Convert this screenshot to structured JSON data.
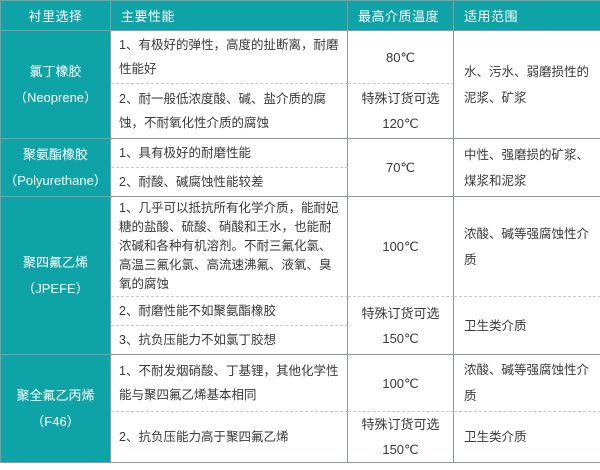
{
  "colors": {
    "accent_teal": "#0ea4a7",
    "border_gray": "#8f9797",
    "dash_gray": "#c9c9c9",
    "text_dark": "#3a3a3a",
    "header_text": "#ffffff"
  },
  "header": {
    "lining": "衬里选择",
    "performance": "主要性能",
    "max_temp": "最高介质温度",
    "scope": "适用范围"
  },
  "rows": [
    {
      "material": "氯丁橡胶",
      "material_en": "（Neoprene）",
      "perf1": "1、有极好的弹性，高度的扯断离，耐磨性能好",
      "temp1": "80℃",
      "perf2": "2、耐一般低浓度酸、碱、盐介质的腐蚀，不耐氧化性介质的腐蚀",
      "temp2_line1": "特殊订货可选",
      "temp2_line2": "120℃",
      "scope": "水、污水、弱磨损性的泥浆、矿浆"
    },
    {
      "material": "聚氨酯橡胶",
      "material_en": "（Polyurethane）",
      "perf1": "1、具有极好的耐磨性能",
      "perf2": "2、耐酸、碱腐蚀性能较差",
      "temp": "70℃",
      "scope": "中性、强磨损的矿浆、煤浆和泥浆"
    },
    {
      "material": "聚四氟乙烯",
      "material_en": "（JPEFE）",
      "perf1": "1、几乎可以抵抗所有化学介质，能耐妃糖的盐酸、硫酸、硝酸和王水，也能耐浓碱和各种有机溶剂。不耐三氟化氯、高温三氟化氯、高流速沸氟、液氧、臭氧的腐蚀",
      "temp1": "100℃",
      "scope1": "浓酸、碱等强腐蚀性介质",
      "perf2": "2、耐磨性能不如聚氨酯橡胶",
      "perf3": "3、抗负压能力不如氯丁胶想",
      "temp2_line1": "特殊订货可选",
      "temp2_line2": "150℃",
      "scope2": "卫生类介质"
    },
    {
      "material": "聚全氟乙丙烯",
      "material_en": "（F46）",
      "perf1": "1、不耐发烟硝酸、丁基锂，其他化学性能与聚四氟乙烯基本相同",
      "temp1": "100℃",
      "scope1": "浓酸、碱等强腐蚀性介质",
      "perf2": "2、抗负压能力高于聚四氟乙烯",
      "temp2_line1": "特殊订货可选",
      "temp2_line2": "150℃",
      "scope2": "卫生类介质"
    }
  ]
}
